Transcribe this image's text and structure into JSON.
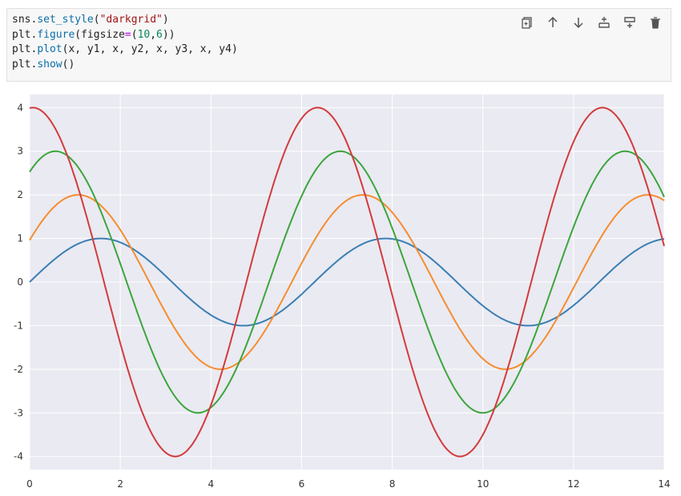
{
  "cell": {
    "code_lines": [
      [
        {
          "t": "sns",
          "c": ""
        },
        {
          "t": ".",
          "c": ""
        },
        {
          "t": "set_style",
          "c": "kw"
        },
        {
          "t": "(",
          "c": ""
        },
        {
          "t": "\"darkgrid\"",
          "c": "str"
        },
        {
          "t": ")",
          "c": ""
        }
      ],
      [
        {
          "t": "plt",
          "c": ""
        },
        {
          "t": ".",
          "c": ""
        },
        {
          "t": "figure",
          "c": "kw"
        },
        {
          "t": "(figsize",
          "c": ""
        },
        {
          "t": "=",
          "c": "op"
        },
        {
          "t": "(",
          "c": ""
        },
        {
          "t": "10",
          "c": "num"
        },
        {
          "t": ",",
          "c": ""
        },
        {
          "t": "6",
          "c": "num"
        },
        {
          "t": "))",
          "c": ""
        }
      ],
      [
        {
          "t": "plt",
          "c": ""
        },
        {
          "t": ".",
          "c": ""
        },
        {
          "t": "plot",
          "c": "kw"
        },
        {
          "t": "(x, y1, x, y2, x, y3, x, y4)",
          "c": ""
        }
      ],
      [
        {
          "t": "plt",
          "c": ""
        },
        {
          "t": ".",
          "c": ""
        },
        {
          "t": "show",
          "c": "kw"
        },
        {
          "t": "()",
          "c": ""
        }
      ]
    ],
    "toolbar": [
      {
        "name": "copy-cell-button",
        "icon": "copy-icon"
      },
      {
        "name": "move-up-button",
        "icon": "arrow-up-icon"
      },
      {
        "name": "move-down-button",
        "icon": "arrow-down-icon"
      },
      {
        "name": "insert-above-button",
        "icon": "insert-above-icon"
      },
      {
        "name": "insert-below-button",
        "icon": "insert-below-icon"
      },
      {
        "name": "delete-cell-button",
        "icon": "trash-icon"
      }
    ]
  },
  "chart_data": {
    "type": "line",
    "style": "darkgrid",
    "background_color": "#eaeaf2",
    "grid": true,
    "xlim": [
      0,
      14
    ],
    "ylim": [
      -4.3,
      4.3
    ],
    "x_ticks": [
      0,
      2,
      4,
      6,
      8,
      10,
      12,
      14
    ],
    "y_ticks": [
      4,
      3,
      2,
      1,
      0,
      -1,
      -2,
      -3,
      -4
    ],
    "x_range": [
      0,
      14
    ],
    "series": [
      {
        "color": "#3a7fb4",
        "amplitude": 1,
        "phase": 0.0,
        "y_start": 0.0,
        "y_end": 0.99
      },
      {
        "color": "#f58d2f",
        "amplitude": 2,
        "phase": 0.5,
        "y_start": 0.96,
        "y_end": 1.88
      },
      {
        "color": "#3ca53c",
        "amplitude": 3,
        "phase": 1.0,
        "y_start": 2.52,
        "y_end": 1.95
      },
      {
        "color": "#d33b3b",
        "amplitude": 4,
        "phase": 1.5,
        "y_start": 4.0,
        "y_end": 0.83
      }
    ]
  }
}
